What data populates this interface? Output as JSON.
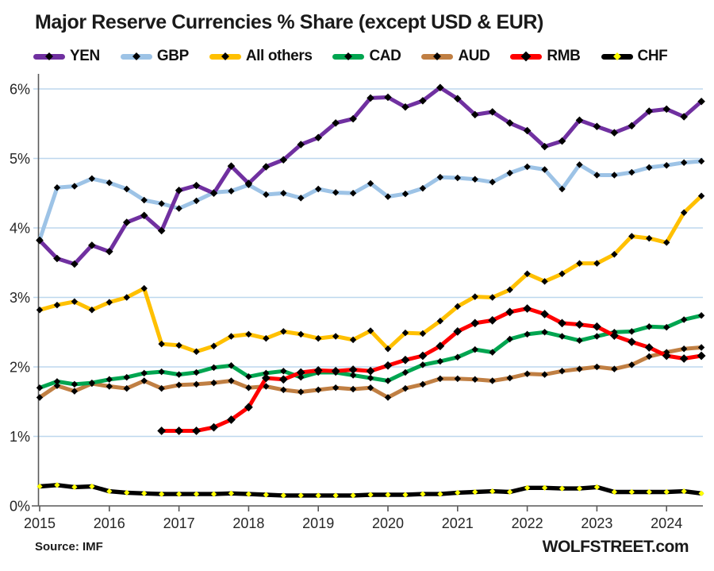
{
  "title": "Major Reserve Currencies % Share (except USD & EUR)",
  "footer": {
    "source": "Source: IMF",
    "branding": "WOLFSTREET.com"
  },
  "colors": {
    "background": "#FFFFFF",
    "grid": "#BDD7EE",
    "axis": "#595959",
    "text": "#262626",
    "title_text": "#1A1A1A"
  },
  "chart_data": {
    "type": "line",
    "title": "Major Reserve Currencies % Share (except USD & EUR)",
    "xlabel": "",
    "ylabel": "",
    "ylim": [
      0,
      6
    ],
    "grid": "horizontal",
    "legend_position": "top",
    "x_tick_labels": [
      "2015",
      "2016",
      "2017",
      "2018",
      "2019",
      "2020",
      "2021",
      "2022",
      "2023",
      "2024"
    ],
    "y_tick_labels": [
      "0%",
      "1%",
      "2%",
      "3%",
      "4%",
      "5%",
      "6%"
    ],
    "x": [
      "2015Q1",
      "2015Q2",
      "2015Q3",
      "2015Q4",
      "2016Q1",
      "2016Q2",
      "2016Q3",
      "2016Q4",
      "2017Q1",
      "2017Q2",
      "2017Q3",
      "2017Q4",
      "2018Q1",
      "2018Q2",
      "2018Q3",
      "2018Q4",
      "2019Q1",
      "2019Q2",
      "2019Q3",
      "2019Q4",
      "2020Q1",
      "2020Q2",
      "2020Q3",
      "2020Q4",
      "2021Q1",
      "2021Q2",
      "2021Q3",
      "2021Q4",
      "2022Q1",
      "2022Q2",
      "2022Q3",
      "2022Q4",
      "2023Q1",
      "2023Q2",
      "2023Q3",
      "2023Q4",
      "2024Q1",
      "2024Q2",
      "2024Q3"
    ],
    "series": [
      {
        "name": "YEN",
        "color": "#7030A0",
        "marker_color": "#000000",
        "values": [
          3.82,
          3.56,
          3.48,
          3.75,
          3.66,
          4.08,
          4.18,
          3.96,
          4.54,
          4.61,
          4.5,
          4.89,
          4.64,
          4.88,
          4.98,
          5.2,
          5.3,
          5.51,
          5.57,
          5.87,
          5.88,
          5.74,
          5.83,
          6.02,
          5.86,
          5.63,
          5.67,
          5.51,
          5.4,
          5.17,
          5.25,
          5.55,
          5.46,
          5.37,
          5.47,
          5.68,
          5.71,
          5.6,
          5.82
        ]
      },
      {
        "name": "GBP",
        "color": "#9DC3E6",
        "marker_color": "#000000",
        "values": [
          3.83,
          4.58,
          4.6,
          4.71,
          4.65,
          4.56,
          4.4,
          4.35,
          4.28,
          4.39,
          4.51,
          4.53,
          4.62,
          4.48,
          4.5,
          4.43,
          4.56,
          4.51,
          4.5,
          4.64,
          4.45,
          4.49,
          4.57,
          4.73,
          4.72,
          4.7,
          4.66,
          4.79,
          4.88,
          4.84,
          4.56,
          4.91,
          4.76,
          4.76,
          4.8,
          4.87,
          4.9,
          4.94,
          4.96
        ]
      },
      {
        "name": "All others",
        "color": "#FFC000",
        "marker_color": "#000000",
        "values": [
          2.82,
          2.89,
          2.94,
          2.82,
          2.93,
          3.0,
          3.13,
          2.33,
          2.31,
          2.22,
          2.3,
          2.44,
          2.47,
          2.41,
          2.51,
          2.47,
          2.41,
          2.44,
          2.39,
          2.52,
          2.26,
          2.49,
          2.48,
          2.66,
          2.87,
          3.01,
          3.0,
          3.11,
          3.34,
          3.23,
          3.34,
          3.49,
          3.49,
          3.62,
          3.88,
          3.85,
          3.79,
          4.22,
          4.46
        ]
      },
      {
        "name": "CAD",
        "color": "#00A550",
        "marker_color": "#000000",
        "values": [
          1.7,
          1.79,
          1.75,
          1.77,
          1.82,
          1.85,
          1.91,
          1.93,
          1.89,
          1.92,
          1.99,
          2.02,
          1.86,
          1.91,
          1.94,
          1.85,
          1.92,
          1.92,
          1.88,
          1.84,
          1.8,
          1.92,
          2.03,
          2.08,
          2.14,
          2.25,
          2.21,
          2.4,
          2.47,
          2.5,
          2.44,
          2.38,
          2.44,
          2.5,
          2.51,
          2.58,
          2.57,
          2.68,
          2.74
        ]
      },
      {
        "name": "AUD",
        "color": "#C07F43",
        "marker_color": "#000000",
        "values": [
          1.56,
          1.73,
          1.65,
          1.76,
          1.72,
          1.69,
          1.8,
          1.69,
          1.74,
          1.75,
          1.77,
          1.8,
          1.7,
          1.72,
          1.67,
          1.64,
          1.67,
          1.7,
          1.68,
          1.7,
          1.56,
          1.69,
          1.75,
          1.83,
          1.83,
          1.82,
          1.8,
          1.84,
          1.9,
          1.89,
          1.94,
          1.97,
          2.0,
          1.97,
          2.03,
          2.15,
          2.21,
          2.26,
          2.28
        ]
      },
      {
        "name": "RMB",
        "color": "#FF0000",
        "marker_color": "#000000",
        "values": [
          null,
          null,
          null,
          null,
          null,
          null,
          null,
          1.08,
          1.08,
          1.08,
          1.13,
          1.24,
          1.42,
          1.84,
          1.82,
          1.92,
          1.95,
          1.94,
          1.96,
          1.94,
          2.02,
          2.1,
          2.16,
          2.3,
          2.51,
          2.63,
          2.67,
          2.79,
          2.84,
          2.76,
          2.63,
          2.61,
          2.58,
          2.45,
          2.36,
          2.28,
          2.16,
          2.12,
          2.16
        ]
      },
      {
        "name": "CHF",
        "color": "#000000",
        "marker_color": "#FFFF00",
        "values": [
          0.28,
          0.3,
          0.27,
          0.28,
          0.21,
          0.19,
          0.18,
          0.17,
          0.17,
          0.17,
          0.17,
          0.18,
          0.17,
          0.16,
          0.15,
          0.15,
          0.15,
          0.15,
          0.15,
          0.16,
          0.16,
          0.16,
          0.17,
          0.17,
          0.19,
          0.2,
          0.21,
          0.2,
          0.26,
          0.26,
          0.25,
          0.25,
          0.27,
          0.2,
          0.2,
          0.2,
          0.2,
          0.21,
          0.18
        ]
      }
    ]
  }
}
